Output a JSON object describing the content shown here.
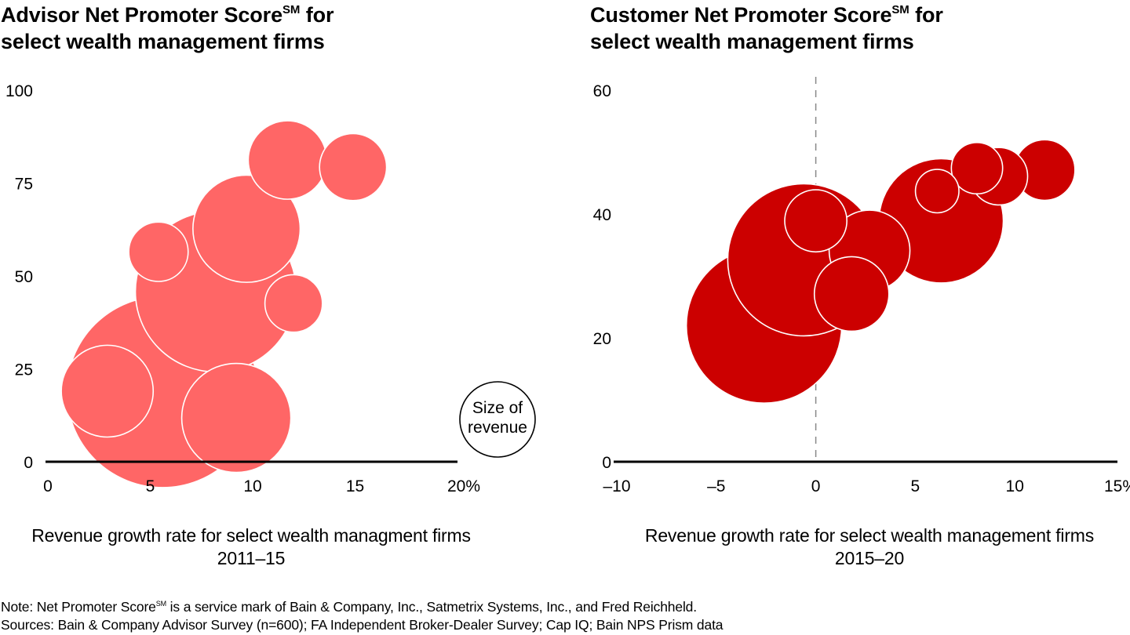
{
  "colors": {
    "left_bubble": "#ff6666",
    "right_bubble": "#cc0000",
    "bubble_stroke": "#ffffff",
    "axis": "#000000",
    "ref_line": "#888888"
  },
  "titles": {
    "left": {
      "main": "Advisor Net Promoter Score",
      "sup": "SM",
      "rest": " for",
      "line2": "select wealth management firms"
    },
    "right": {
      "main": "Customer Net Promoter Score",
      "sup": "SM",
      "rest": " for",
      "line2": "select wealth management firms"
    }
  },
  "xlabels": {
    "left": {
      "line1": "Revenue growth rate for select wealth managment firms",
      "line2": "2011–15"
    },
    "right": {
      "line1": "Revenue growth rate for select wealth management firms",
      "line2": "2015–20"
    }
  },
  "legend": {
    "line1": "Size of",
    "line2": "revenue"
  },
  "footer": {
    "note_prefix": "Note: Net Promoter Score",
    "note_sup": "SM",
    "note_rest": " is a service mark of Bain & Company, Inc., Satmetrix Systems, Inc., and Fred Reichheld.",
    "sources": "Sources: Bain & Company Advisor Survey (n=600); FA Independent Broker-Dealer Survey; Cap IQ; Bain NPS Prism data"
  },
  "chart_data": [
    {
      "type": "scatter",
      "subtype": "bubble",
      "title": "Advisor Net Promoter Score(SM) for select wealth management firms",
      "xlabel": "Revenue growth rate for select wealth managment firms 2011–15",
      "ylabel": "",
      "xlim": [
        0,
        20
      ],
      "ylim": [
        0,
        100
      ],
      "x_ticks": [
        "0",
        "5",
        "10",
        "15",
        "20%"
      ],
      "x_tick_values": [
        0,
        5,
        10,
        15,
        20
      ],
      "y_ticks": [
        "0",
        "25",
        "50",
        "75",
        "100"
      ],
      "y_tick_values": [
        0,
        25,
        50,
        75,
        100
      ],
      "grid": false,
      "legend": "bottom-right",
      "legend_text": "Size of revenue",
      "size_unit": "relative revenue (bubble radius, relative to largest = 1.0)",
      "points": [
        {
          "x": 5.6,
          "y": 18.8,
          "size": 1.0
        },
        {
          "x": 8.2,
          "y": 45.8,
          "size": 0.84
        },
        {
          "x": 2.9,
          "y": 19.0,
          "size": 0.48
        },
        {
          "x": 9.2,
          "y": 11.8,
          "size": 0.57
        },
        {
          "x": 5.4,
          "y": 56.5,
          "size": 0.31
        },
        {
          "x": 9.7,
          "y": 62.7,
          "size": 0.56
        },
        {
          "x": 12.0,
          "y": 42.6,
          "size": 0.3
        },
        {
          "x": 11.7,
          "y": 81.2,
          "size": 0.41
        },
        {
          "x": 14.9,
          "y": 79.3,
          "size": 0.35
        }
      ]
    },
    {
      "type": "scatter",
      "subtype": "bubble",
      "title": "Customer Net Promoter Score(SM) for select wealth management firms",
      "xlabel": "Revenue growth rate for select wealth management firms 2015–20",
      "ylabel": "",
      "xlim": [
        -10,
        15
      ],
      "ylim": [
        0,
        60
      ],
      "x_ticks": [
        "–10",
        "–5",
        "0",
        "5",
        "10",
        "15%"
      ],
      "x_tick_values": [
        -10,
        -5,
        0,
        5,
        10,
        15
      ],
      "y_ticks": [
        "0",
        "20",
        "40",
        "60"
      ],
      "y_tick_values": [
        0,
        20,
        40,
        60
      ],
      "grid": false,
      "reference_line": {
        "axis": "x",
        "value": 0,
        "style": "dashed"
      },
      "size_unit": "relative revenue (bubble radius, relative to largest = 1.0)",
      "points": [
        {
          "x": -0.6,
          "y": 32.6,
          "size": 0.98
        },
        {
          "x": -2.6,
          "y": 22.0,
          "size": 1.0
        },
        {
          "x": 2.7,
          "y": 34.1,
          "size": 0.52
        },
        {
          "x": 6.3,
          "y": 38.9,
          "size": 0.8
        },
        {
          "x": 0.0,
          "y": 38.9,
          "size": 0.4
        },
        {
          "x": 1.8,
          "y": 27.1,
          "size": 0.48
        },
        {
          "x": 9.2,
          "y": 46.1,
          "size": 0.37
        },
        {
          "x": 11.5,
          "y": 47.1,
          "size": 0.39
        },
        {
          "x": 8.1,
          "y": 47.4,
          "size": 0.33
        },
        {
          "x": 6.1,
          "y": 43.7,
          "size": 0.28
        }
      ]
    }
  ]
}
